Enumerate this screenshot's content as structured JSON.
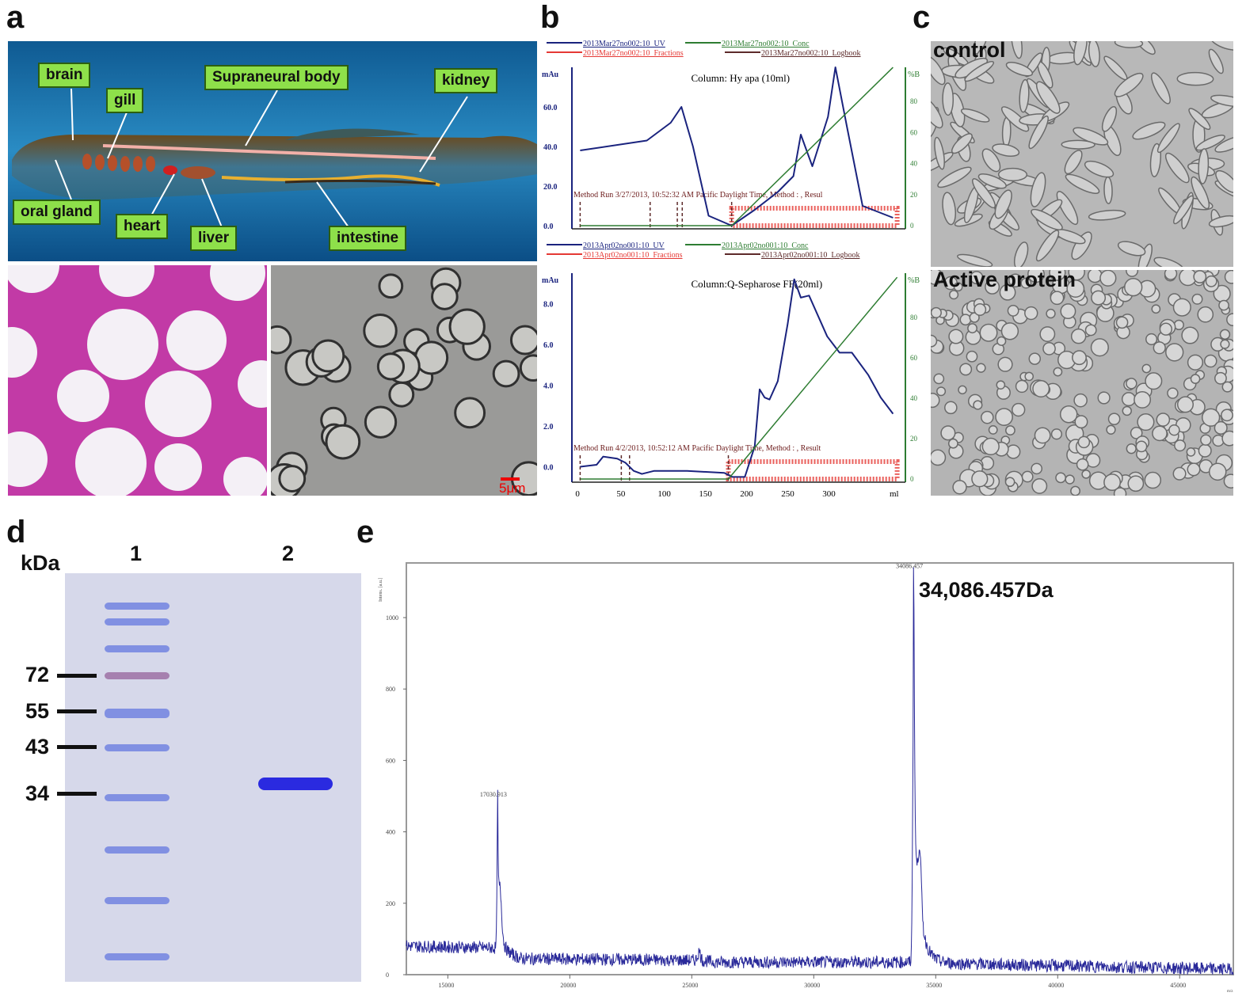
{
  "panels": {
    "a": "a",
    "b": "b",
    "c": "c",
    "d": "d",
    "e": "e"
  },
  "panel_a": {
    "labels": [
      "brain",
      "gill",
      "Supraneural body",
      "kidney",
      "oral gland",
      "heart",
      "liver",
      "intestine"
    ],
    "scale_bar": "5μm",
    "colors": {
      "water": "#1c6fa6",
      "label_bg": "#8ee04a",
      "histology": "#c23aa6"
    }
  },
  "panel_b": {
    "top": {
      "legend": [
        "2013Mar27no002:10_UV",
        "2013Mar27no002:10_Conc",
        "2013Mar27no002:10_Fractions",
        "2013Mar27no002:10_Logbook"
      ],
      "title": "Column: Hy apa  (10ml)",
      "ylabel": "mAu",
      "y2label": "%B",
      "method": "Method Run 3/27/2013, 10:52:32 AM Pacific Daylight Time, Method : , Resul"
    },
    "bottom": {
      "legend": [
        "2013Apr02no001:10_UV",
        "2013Apr02no001:10_Conc",
        "2013Apr02no001:10_Fractions",
        "2013Apr02no001:10_Logbook"
      ],
      "title": "Column:Q-Sepharose FF(20ml)",
      "ylabel": "mAu",
      "y2label": "%B",
      "xlabel": "ml",
      "method": "Method Run 4/2/2013, 10:52:12 AM Pacific Daylight Time, Method : , Result"
    }
  },
  "panel_c": {
    "top": "control",
    "bottom": "Active protein"
  },
  "panel_d": {
    "unit": "kDa",
    "lanes": [
      "1",
      "2"
    ],
    "markers": [
      "72",
      "55",
      "43",
      "34"
    ]
  },
  "panel_e": {
    "annotation": "34,086.457Da"
  },
  "chart_data": [
    {
      "type": "line",
      "panel": "b-top",
      "title": "Column: Hy apa  (10ml)",
      "ylabel": "mAu",
      "y2label": "%B",
      "ylim": [
        0,
        80
      ],
      "yticks": [
        "0.0",
        "20.0",
        "40.0",
        "60.0"
      ],
      "y2ticks": [
        "0",
        "20",
        "40",
        "60",
        "80"
      ],
      "xlim": [
        -10,
        395
      ],
      "series": [
        {
          "name": "2013Mar27no002:10_UV",
          "color": "#1a237e",
          "x": [
            0,
            81,
            110,
            123,
            137,
            156,
            184,
            212,
            240,
            259,
            268,
            282,
            301,
            310,
            324,
            343,
            380
          ],
          "y": [
            38,
            43,
            52,
            60,
            40,
            5,
            0,
            8,
            17,
            25,
            46,
            30,
            55,
            80,
            50,
            10,
            4
          ]
        },
        {
          "name": "2013Mar27no002:10_Conc",
          "color": "#2e7d32",
          "axis": "y2",
          "x": [
            0,
            184,
            380
          ],
          "y": [
            0,
            0,
            102
          ]
        }
      ],
      "fractions": [
        184,
        385
      ],
      "logbook_marks": [
        0,
        85,
        118,
        124,
        184
      ]
    },
    {
      "type": "line",
      "panel": "b-bottom",
      "title": "Column:Q-Sepharose FF(20ml)",
      "xlabel": "ml",
      "ylabel": "mAu",
      "y2label": "%B",
      "ylim": [
        -0.6,
        9.5
      ],
      "yticks": [
        "0.0",
        "2.0",
        "4.0",
        "6.0",
        "8.0"
      ],
      "y2ticks": [
        "0",
        "20",
        "40",
        "60",
        "80"
      ],
      "xticks": [
        "0",
        "50",
        "100",
        "150",
        "200",
        "250",
        "300"
      ],
      "xlim": [
        -10,
        395
      ],
      "series": [
        {
          "name": "2013Apr02no001:10_UV",
          "color": "#1a237e",
          "x": [
            0,
            20,
            28,
            45,
            55,
            65,
            75,
            90,
            130,
            175,
            185,
            200,
            212,
            218,
            224,
            230,
            240,
            252,
            260,
            268,
            278,
            300,
            315,
            330,
            350,
            365,
            380
          ],
          "y": [
            0,
            0.1,
            0.5,
            0.4,
            0.2,
            -0.2,
            -0.35,
            -0.2,
            -0.2,
            -0.3,
            -0.5,
            -0.5,
            1,
            3.8,
            3.4,
            3.3,
            4.2,
            7,
            9.2,
            8.3,
            8.4,
            6.4,
            5.6,
            5.6,
            4.5,
            3.4,
            2.6
          ]
        },
        {
          "name": "2013Apr02no001:10_Conc",
          "color": "#2e7d32",
          "axis": "y2",
          "x": [
            0,
            180,
            385
          ],
          "y": [
            0,
            0,
            100
          ]
        }
      ],
      "fractions": [
        180,
        385
      ],
      "logbook_marks": [
        0,
        50,
        60,
        180
      ]
    },
    {
      "type": "line",
      "panel": "e",
      "xlabel": "m/z",
      "ylabel": "Intens. [a.u.]",
      "xlim": [
        13300,
        47200
      ],
      "ylim": [
        0,
        1130
      ],
      "xticks": [
        "15000",
        "20000",
        "25000",
        "30000",
        "35000",
        "40000",
        "45000"
      ],
      "yticks": [
        "0",
        "200",
        "400",
        "600",
        "800",
        "1000"
      ],
      "color": "#2a2a9a",
      "peaks": [
        {
          "x": 17030.913,
          "y": 490,
          "label": "17030.913"
        },
        {
          "x": 34086.457,
          "y": 1130,
          "label": "34086.457"
        }
      ],
      "baseline": [
        [
          13300,
          80
        ],
        [
          17000,
          75
        ],
        [
          18000,
          45
        ],
        [
          25300,
          40
        ],
        [
          26000,
          35
        ],
        [
          33800,
          35
        ],
        [
          36500,
          30
        ],
        [
          47200,
          15
        ]
      ],
      "shoulders": [
        {
          "x": 17150,
          "y": 320
        },
        {
          "x": 34350,
          "y": 550
        },
        {
          "x": 25300,
          "y": 80
        }
      ]
    }
  ]
}
